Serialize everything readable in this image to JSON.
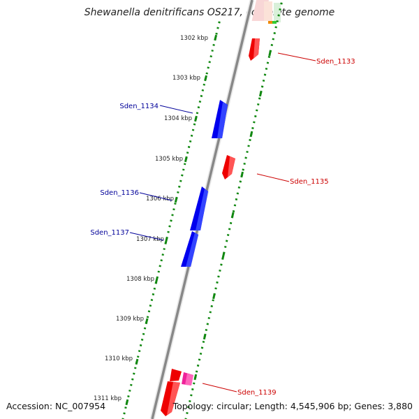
{
  "map": {
    "title": "Shewanella denitrificans OS217, complete genome",
    "accession": "Accession: NC_007954",
    "summary": "Topology: circular; Length: 4,545,906 bp; Genes: 3,880",
    "colors": {
      "forward_gene": "#ee0000",
      "reverse_gene": "#0000ee",
      "other_gene": "#ee2299",
      "backbone": "#888888",
      "ticks": "#118811",
      "right_labels": "#cc0000",
      "left_labels": "#000099"
    },
    "scale_labels": [
      "1302 kbp",
      "1303 kbp",
      "1304 kbp",
      "1305 kbp",
      "1306 kbp",
      "1307 kbp",
      "1308 kbp",
      "1309 kbp",
      "1310 kbp",
      "1311 kbp"
    ],
    "gene_labels": [
      "Sden_1133",
      "Sden_1134",
      "Sden_1135",
      "Sden_1136",
      "Sden_1137",
      "Sden_1139"
    ]
  }
}
